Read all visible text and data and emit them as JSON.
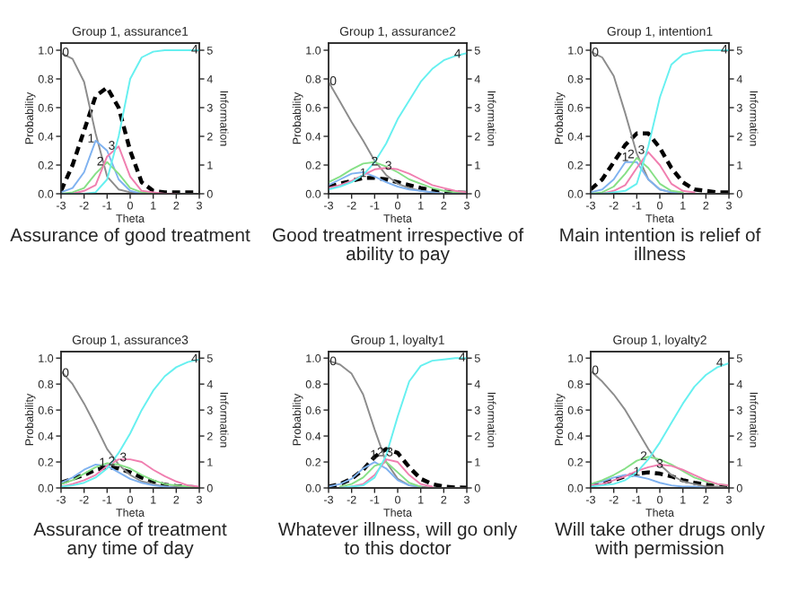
{
  "chart_data": [
    {
      "type": "line",
      "title": "Group 1, assurance1",
      "xlabel": "Theta",
      "ylabel": "Probability",
      "y2label": "Information",
      "x": [
        -3,
        -2.5,
        -2,
        -1.5,
        -1,
        -0.5,
        0,
        0.5,
        1,
        1.5,
        2,
        2.5,
        3
      ],
      "xlim": [
        -3,
        3
      ],
      "xticks": [
        -3,
        -2,
        -1,
        0,
        1,
        2,
        3
      ],
      "ylim": [
        0,
        1.05
      ],
      "yticks": [
        {
          "value": 0,
          "label": "0.0"
        },
        {
          "value": 0.2,
          "label": "0.2"
        },
        {
          "value": 0.4,
          "label": "0.4"
        },
        {
          "value": 0.6,
          "label": "0.6"
        },
        {
          "value": 0.8,
          "label": "0.8"
        },
        {
          "value": 1,
          "label": "1.0"
        }
      ],
      "y2lim": [
        0,
        5.25
      ],
      "y2ticks": [
        0,
        1,
        2,
        3,
        4,
        5
      ],
      "series": [
        {
          "color": "#8c8c8c",
          "values": [
            0.98,
            0.94,
            0.78,
            0.42,
            0.12,
            0.03,
            0.01,
            0,
            0,
            0,
            0,
            0,
            0
          ]
        },
        {
          "color": "#7fb2f0",
          "values": [
            0.01,
            0.04,
            0.15,
            0.37,
            0.3,
            0.1,
            0.02,
            0,
            0,
            null,
            null,
            null,
            null
          ]
        },
        {
          "color": "#86e086",
          "values": [
            0,
            0.01,
            0.04,
            0.14,
            0.22,
            0.14,
            0.04,
            0.01,
            0,
            0,
            null,
            null,
            null
          ]
        },
        {
          "color": "#f07fb0",
          "values": [
            0,
            0,
            0.02,
            0.06,
            0.26,
            0.33,
            0.12,
            0.02,
            0.01,
            0,
            0,
            null,
            null
          ]
        },
        {
          "color": "#66f0f0",
          "values": [
            0,
            0,
            0,
            0.01,
            0.1,
            0.4,
            0.8,
            0.95,
            0.99,
            1,
            1,
            1,
            1
          ]
        },
        {
          "color": "#000000",
          "axis": "y2",
          "line_style": "dashed",
          "values": [
            0.1,
            1.0,
            2.2,
            3.4,
            3.7,
            3.0,
            1.5,
            0.4,
            0.1,
            0.05,
            0.05,
            0.05,
            0.05
          ]
        }
      ],
      "annotations": [
        {
          "text": "0",
          "x": -2.8,
          "y": 0.98
        },
        {
          "text": "1",
          "x": -1.7,
          "y": 0.38
        },
        {
          "text": "2",
          "x": -1.3,
          "y": 0.22
        },
        {
          "text": "3",
          "x": -0.8,
          "y": 0.33
        },
        {
          "text": "4",
          "x": 2.8,
          "y": 1.0
        },
        "Assurance of good treatment"
      ]
    },
    {
      "type": "line",
      "title": "Group 1, assurance2",
      "xlabel": "Theta",
      "ylabel": "Probability",
      "y2label": "Information",
      "x": [
        -3,
        -2.5,
        -2,
        -1.5,
        -1,
        -0.5,
        0,
        0.5,
        1,
        1.5,
        2,
        2.5,
        3
      ],
      "xlim": [
        -3,
        3
      ],
      "xticks": [
        -3,
        -2,
        -1,
        0,
        1,
        2,
        3
      ],
      "ylim": [
        0,
        1.05
      ],
      "yticks": [
        {
          "value": 0,
          "label": "0.0"
        },
        {
          "value": 0.2,
          "label": "0.2"
        },
        {
          "value": 0.4,
          "label": "0.4"
        },
        {
          "value": 0.6,
          "label": "0.6"
        },
        {
          "value": 0.8,
          "label": "0.8"
        },
        {
          "value": 1,
          "label": "1.0"
        }
      ],
      "y2lim": [
        0,
        5.25
      ],
      "y2ticks": [
        0,
        1,
        2,
        3,
        4,
        5
      ],
      "series": [
        {
          "color": "#8c8c8c",
          "values": [
            0.78,
            0.64,
            0.5,
            0.37,
            0.23,
            0.13,
            0.07,
            0.04,
            0.02,
            0.01,
            0,
            0,
            0
          ]
        },
        {
          "color": "#7fb2f0",
          "values": [
            0.06,
            0.1,
            0.14,
            0.15,
            0.12,
            0.08,
            0.05,
            0.03,
            0.02,
            0.01,
            0,
            0,
            0
          ]
        },
        {
          "color": "#86e086",
          "values": [
            0.08,
            0.12,
            0.17,
            0.21,
            0.22,
            0.19,
            0.15,
            0.1,
            0.07,
            0.04,
            0.02,
            0.01,
            0.01
          ]
        },
        {
          "color": "#f07fb0",
          "values": [
            0.04,
            0.06,
            0.09,
            0.13,
            0.17,
            0.18,
            0.17,
            0.14,
            0.1,
            0.06,
            0.04,
            0.02,
            0.01
          ]
        },
        {
          "color": "#66f0f0",
          "values": [
            0.03,
            0.05,
            0.08,
            0.13,
            0.22,
            0.35,
            0.52,
            0.65,
            0.78,
            0.87,
            0.93,
            0.96,
            0.98
          ]
        },
        {
          "color": "#000000",
          "axis": "y2",
          "line_style": "dashed",
          "values": [
            0.25,
            0.35,
            0.45,
            0.55,
            0.55,
            0.5,
            0.4,
            0.3,
            0.2,
            0.12,
            0.07,
            0.04,
            0.03
          ]
        }
      ],
      "annotations": [
        {
          "text": "0",
          "x": -2.8,
          "y": 0.78
        },
        {
          "text": "1",
          "x": -1.5,
          "y": 0.14
        },
        {
          "text": "2",
          "x": -1.0,
          "y": 0.22
        },
        {
          "text": "3",
          "x": -0.4,
          "y": 0.19
        },
        {
          "text": "4",
          "x": 2.6,
          "y": 0.97
        },
        "Good treatment irrespective of\nability to pay"
      ]
    },
    {
      "type": "line",
      "title": "Group 1, intention1",
      "xlabel": "Theta",
      "ylabel": "Probability",
      "y2label": "Information",
      "x": [
        -3,
        -2.5,
        -2,
        -1.5,
        -1,
        -0.5,
        0,
        0.5,
        1,
        1.5,
        2,
        2.5,
        3
      ],
      "xlim": [
        -3,
        3
      ],
      "xticks": [
        -3,
        -2,
        -1,
        0,
        1,
        2,
        3
      ],
      "ylim": [
        0,
        1.05
      ],
      "yticks": [
        {
          "value": 0,
          "label": "0.0"
        },
        {
          "value": 0.2,
          "label": "0.2"
        },
        {
          "value": 0.4,
          "label": "0.4"
        },
        {
          "value": 0.6,
          "label": "0.6"
        },
        {
          "value": 0.8,
          "label": "0.8"
        },
        {
          "value": 1,
          "label": "1.0"
        }
      ],
      "y2lim": [
        0,
        5.25
      ],
      "y2ticks": [
        0,
        1,
        2,
        3,
        4,
        5
      ],
      "series": [
        {
          "color": "#8c8c8c",
          "values": [
            0.99,
            0.95,
            0.82,
            0.56,
            0.28,
            0.1,
            0.03,
            0.01,
            0,
            0,
            0,
            0,
            0
          ]
        },
        {
          "color": "#7fb2f0",
          "values": [
            0.01,
            0.03,
            0.1,
            0.22,
            0.22,
            0.1,
            0.03,
            0.01,
            0,
            null,
            null,
            null,
            null
          ]
        },
        {
          "color": "#86e086",
          "values": [
            0,
            0.01,
            0.05,
            0.14,
            0.25,
            0.18,
            0.07,
            0.02,
            0.01,
            null,
            null,
            null,
            null
          ]
        },
        {
          "color": "#f07fb0",
          "values": [
            0,
            0,
            0.02,
            0.06,
            0.18,
            0.29,
            0.2,
            0.07,
            0.02,
            0.01,
            null,
            null,
            null
          ]
        },
        {
          "color": "#66f0f0",
          "values": [
            0,
            0,
            0.01,
            0.02,
            0.07,
            0.33,
            0.67,
            0.9,
            0.97,
            0.99,
            1,
            1,
            1
          ]
        },
        {
          "color": "#000000",
          "axis": "y2",
          "line_style": "dashed",
          "values": [
            0.15,
            0.5,
            1.1,
            1.7,
            2.1,
            2.1,
            1.6,
            0.9,
            0.4,
            0.15,
            0.1,
            0.05,
            0.05
          ]
        }
      ],
      "annotations": [
        {
          "text": "0",
          "x": -2.8,
          "y": 0.98
        },
        {
          "text": "1",
          "x": -1.5,
          "y": 0.25
        },
        {
          "text": "2",
          "x": -1.25,
          "y": 0.27
        },
        {
          "text": "3",
          "x": -0.8,
          "y": 0.3
        },
        {
          "text": "4",
          "x": 2.8,
          "y": 1.0
        },
        "Main intention is relief of\nillness"
      ]
    },
    {
      "type": "line",
      "title": "Group 1, assurance3",
      "xlabel": "Theta",
      "ylabel": "Probability",
      "y2label": "Information",
      "x": [
        -3,
        -2.5,
        -2,
        -1.5,
        -1,
        -0.5,
        0,
        0.5,
        1,
        1.5,
        2,
        2.5,
        3
      ],
      "xlim": [
        -3,
        3
      ],
      "xticks": [
        -3,
        -2,
        -1,
        0,
        1,
        2,
        3
      ],
      "ylim": [
        0,
        1.05
      ],
      "yticks": [
        {
          "value": 0,
          "label": "0.0"
        },
        {
          "value": 0.2,
          "label": "0.2"
        },
        {
          "value": 0.4,
          "label": "0.4"
        },
        {
          "value": 0.6,
          "label": "0.6"
        },
        {
          "value": 0.8,
          "label": "0.8"
        },
        {
          "value": 1,
          "label": "1.0"
        }
      ],
      "y2lim": [
        0,
        5.25
      ],
      "y2ticks": [
        0,
        1,
        2,
        3,
        4,
        5
      ],
      "series": [
        {
          "color": "#8c8c8c",
          "values": [
            0.9,
            0.8,
            0.65,
            0.48,
            0.3,
            0.18,
            0.1,
            0.05,
            0.03,
            0.01,
            0.01,
            0,
            0
          ]
        },
        {
          "color": "#7fb2f0",
          "values": [
            0.04,
            0.08,
            0.14,
            0.18,
            0.17,
            0.12,
            0.07,
            0.04,
            0.02,
            0.01,
            0,
            0,
            0
          ]
        },
        {
          "color": "#86e086",
          "values": [
            0.03,
            0.06,
            0.11,
            0.16,
            0.19,
            0.18,
            0.15,
            0.1,
            0.06,
            0.03,
            0.02,
            0.01,
            0
          ]
        },
        {
          "color": "#f07fb0",
          "values": [
            0.01,
            0.03,
            0.06,
            0.1,
            0.17,
            0.22,
            0.22,
            0.2,
            0.14,
            0.09,
            0.05,
            0.02,
            0.01
          ]
        },
        {
          "color": "#66f0f0",
          "values": [
            0.01,
            0.02,
            0.04,
            0.08,
            0.15,
            0.27,
            0.42,
            0.6,
            0.75,
            0.86,
            0.93,
            0.97,
            0.99
          ]
        },
        {
          "color": "#000000",
          "axis": "y2",
          "line_style": "dashed",
          "values": [
            0.2,
            0.35,
            0.5,
            0.7,
            0.8,
            0.75,
            0.6,
            0.4,
            0.25,
            0.12,
            0.07,
            0.04,
            0.02
          ]
        }
      ],
      "annotations": [
        {
          "text": "0",
          "x": -2.8,
          "y": 0.88
        },
        {
          "text": "1",
          "x": -1.2,
          "y": 0.19
        },
        {
          "text": "2",
          "x": -0.8,
          "y": 0.2
        },
        {
          "text": "3",
          "x": -0.3,
          "y": 0.23
        },
        {
          "text": "4",
          "x": 2.8,
          "y": 0.99
        },
        "Assurance of treatment\nany time of day"
      ]
    },
    {
      "type": "line",
      "title": "Group 1, loyalty1",
      "xlabel": "Theta",
      "ylabel": "Probability",
      "y2label": "Information",
      "x": [
        -3,
        -2.5,
        -2,
        -1.5,
        -1,
        -0.5,
        0,
        0.5,
        1,
        1.5,
        2,
        2.5,
        3
      ],
      "xlim": [
        -3,
        3
      ],
      "xticks": [
        -3,
        -2,
        -1,
        0,
        1,
        2,
        3
      ],
      "ylim": [
        0,
        1.05
      ],
      "yticks": [
        {
          "value": 0,
          "label": "0.0"
        },
        {
          "value": 0.2,
          "label": "0.2"
        },
        {
          "value": 0.4,
          "label": "0.4"
        },
        {
          "value": 0.6,
          "label": "0.6"
        },
        {
          "value": 0.8,
          "label": "0.8"
        },
        {
          "value": 1,
          "label": "1.0"
        }
      ],
      "y2lim": [
        0,
        5.25
      ],
      "y2ticks": [
        0,
        1,
        2,
        3,
        4,
        5
      ],
      "series": [
        {
          "color": "#8c8c8c",
          "values": [
            0.98,
            0.95,
            0.88,
            0.72,
            0.45,
            0.2,
            0.07,
            0.02,
            0.01,
            0,
            0,
            0,
            0
          ]
        },
        {
          "color": "#7fb2f0",
          "values": [
            0.01,
            0.03,
            0.07,
            0.15,
            0.2,
            0.15,
            0.06,
            0.02,
            0.01,
            null,
            null,
            null,
            null
          ]
        },
        {
          "color": "#86e086",
          "values": [
            null,
            0.01,
            0.03,
            0.08,
            0.17,
            0.2,
            0.12,
            0.04,
            0.01,
            null,
            null,
            null,
            null
          ]
        },
        {
          "color": "#f07fb0",
          "values": [
            null,
            0,
            0.01,
            0.03,
            0.1,
            0.22,
            0.2,
            0.1,
            0.03,
            0.01,
            null,
            null,
            null
          ]
        },
        {
          "color": "#66f0f0",
          "values": [
            null,
            0,
            0.01,
            0.02,
            0.08,
            0.25,
            0.55,
            0.82,
            0.94,
            0.98,
            0.99,
            1,
            1
          ]
        },
        {
          "color": "#000000",
          "axis": "y2",
          "line_style": "dashed",
          "values": [
            0.05,
            0.15,
            0.35,
            0.7,
            1.2,
            1.5,
            1.35,
            0.8,
            0.35,
            0.15,
            0.05,
            0.02,
            0.01
          ]
        }
      ],
      "annotations": [
        {
          "text": "0",
          "x": -2.8,
          "y": 0.97
        },
        {
          "text": "1",
          "x": -1.05,
          "y": 0.25
        },
        {
          "text": "2",
          "x": -0.75,
          "y": 0.27
        },
        {
          "text": "3",
          "x": -0.35,
          "y": 0.27
        },
        {
          "text": "4",
          "x": 2.8,
          "y": 1.0
        },
        "Whatever illness, will go only\nto this doctor"
      ]
    },
    {
      "type": "line",
      "title": "Group 1, loyalty2",
      "xlabel": "Theta",
      "ylabel": "Probability",
      "y2label": "Information",
      "x": [
        -3,
        -2.5,
        -2,
        -1.5,
        -1,
        -0.5,
        0,
        0.5,
        1,
        1.5,
        2,
        2.5,
        3
      ],
      "xlim": [
        -3,
        3
      ],
      "xticks": [
        -3,
        -2,
        -1,
        0,
        1,
        2,
        3
      ],
      "ylim": [
        0,
        1.05
      ],
      "yticks": [
        {
          "value": 0,
          "label": "0.0"
        },
        {
          "value": 0.2,
          "label": "0.2"
        },
        {
          "value": 0.4,
          "label": "0.4"
        },
        {
          "value": 0.6,
          "label": "0.6"
        },
        {
          "value": 0.8,
          "label": "0.8"
        },
        {
          "value": 1,
          "label": "1.0"
        }
      ],
      "y2lim": [
        0,
        5.25
      ],
      "y2ticks": [
        0,
        1,
        2,
        3,
        4,
        5
      ],
      "series": [
        {
          "color": "#8c8c8c",
          "values": [
            0.9,
            0.82,
            0.72,
            0.6,
            0.45,
            0.3,
            0.18,
            0.1,
            0.05,
            0.03,
            0.01,
            0.01,
            0
          ]
        },
        {
          "color": "#7fb2f0",
          "values": [
            0.03,
            0.05,
            0.08,
            0.1,
            0.09,
            0.07,
            0.04,
            0.02,
            0.01,
            0.01,
            0,
            null,
            null
          ]
        },
        {
          "color": "#86e086",
          "values": [
            0.03,
            0.06,
            0.1,
            0.15,
            0.21,
            0.24,
            0.22,
            0.18,
            0.13,
            0.08,
            0.05,
            0.03,
            0.02
          ]
        },
        {
          "color": "#f07fb0",
          "values": [
            0.02,
            0.03,
            0.06,
            0.09,
            0.13,
            0.16,
            0.18,
            0.17,
            0.14,
            0.1,
            0.06,
            0.03,
            0.02
          ]
        },
        {
          "color": "#66f0f0",
          "values": [
            0.01,
            0.02,
            0.03,
            0.06,
            0.12,
            0.22,
            0.35,
            0.5,
            0.65,
            0.78,
            0.87,
            0.93,
            0.96
          ]
        },
        {
          "color": "#000000",
          "axis": "y2",
          "line_style": "dashed",
          "values": [
            0.1,
            0.2,
            0.3,
            0.45,
            0.55,
            0.6,
            0.55,
            0.45,
            0.3,
            0.2,
            0.12,
            0.07,
            0.04
          ]
        }
      ],
      "annotations": [
        {
          "text": "0",
          "x": -2.8,
          "y": 0.9
        },
        {
          "text": "1",
          "x": -1.0,
          "y": 0.12
        },
        {
          "text": "2",
          "x": -0.7,
          "y": 0.24
        },
        {
          "text": "3",
          "x": 0,
          "y": 0.18
        },
        {
          "text": "4",
          "x": 2.6,
          "y": 0.96
        },
        "Will take other drugs only\nwith permission"
      ]
    }
  ]
}
